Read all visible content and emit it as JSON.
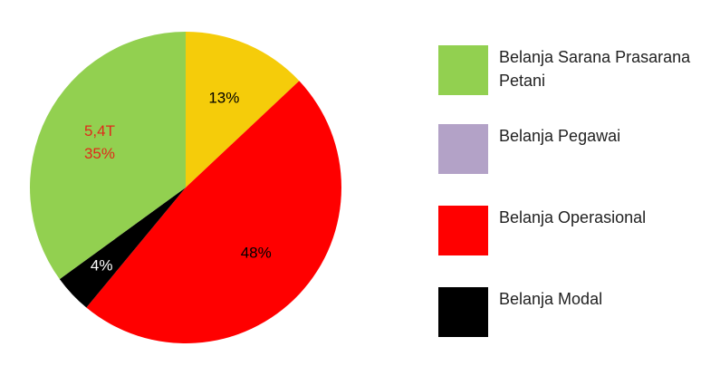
{
  "chart_data": {
    "type": "pie",
    "values": [
      13,
      48,
      4,
      35
    ],
    "value_labels": [
      "13%",
      "48%",
      "4%",
      "35%"
    ],
    "colors": [
      "#f5cc0a",
      "#ff0000",
      "#000000",
      "#92d050"
    ],
    "label_colors": [
      "#000000",
      "#000000",
      "#ffffff",
      "#e02a1a"
    ],
    "annotation": {
      "text": "5,4T",
      "slice": 3
    },
    "legend": [
      {
        "name": "Belanja Sarana Prasarana Petani",
        "color": "#92d050"
      },
      {
        "name": "Belanja Pegawai",
        "color": "#b3a2c7"
      },
      {
        "name": "Belanja Operasional",
        "color": "#ff0000"
      },
      {
        "name": "Belanja Modal",
        "color": "#000000"
      }
    ]
  }
}
